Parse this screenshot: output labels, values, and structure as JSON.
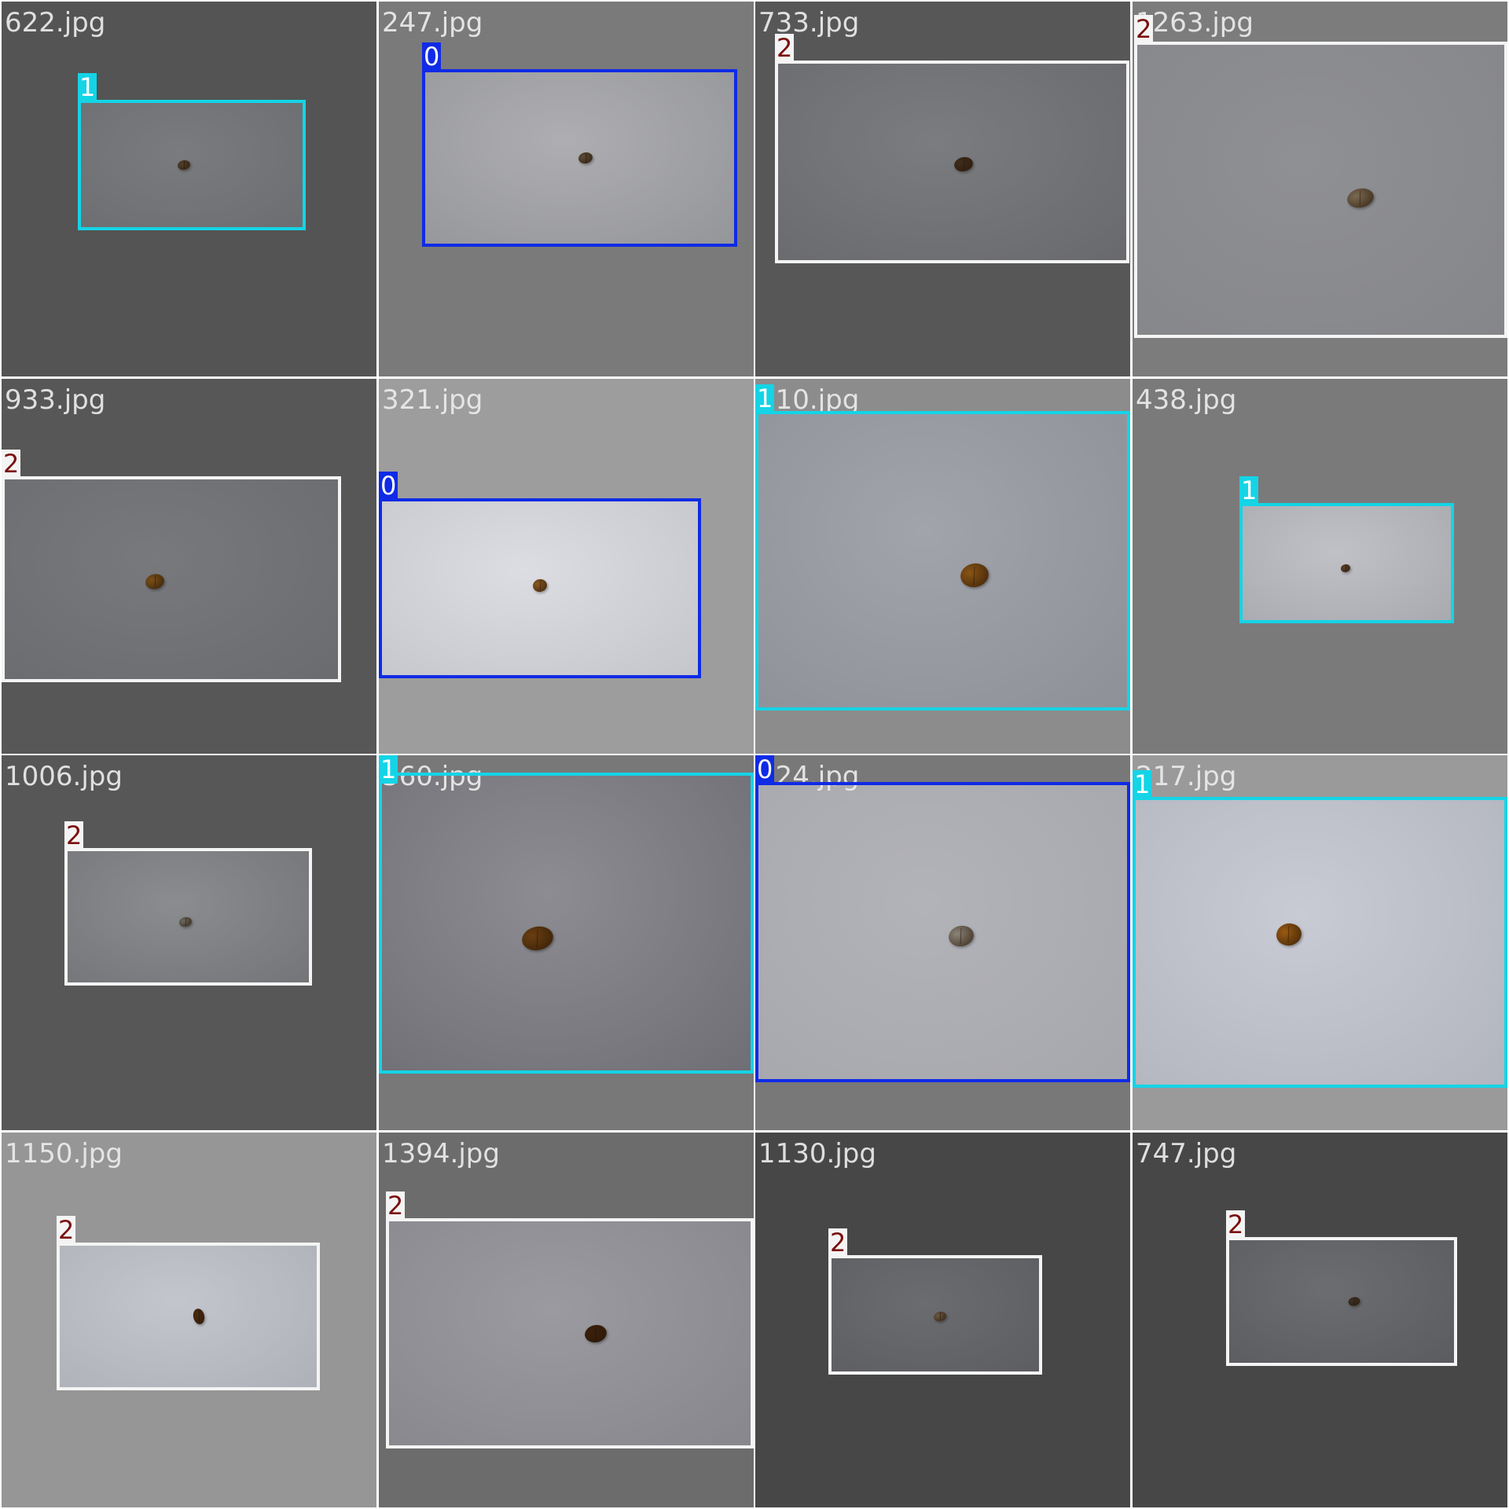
{
  "mosaic": {
    "tiles": [
      {
        "file": "622.jpg",
        "label": "1",
        "bg": "#545454",
        "photo": [
          "#7a7b7e",
          "#6c6d70"
        ],
        "bean": "#4f3f2c"
      },
      {
        "file": "247.jpg",
        "label": "0",
        "bg": "#7a7a7a",
        "photo": [
          "#aeaeb2",
          "#949598"
        ],
        "bean": "#5a4a35"
      },
      {
        "file": "733.jpg",
        "label": "2",
        "bg": "#575757",
        "photo": [
          "#7b7c7f",
          "#68696c"
        ],
        "bean": "#3d2d1c"
      },
      {
        "file": "1263.jpg",
        "label": "2",
        "bg": "#7c7c7c",
        "photo": [
          "#8f9094",
          "#858689"
        ],
        "bean": "#7a6a52"
      },
      {
        "file": "933.jpg",
        "label": "2",
        "bg": "#575757",
        "photo": [
          "#78797d",
          "#6a6b6f"
        ],
        "bean": "#7a4f18"
      },
      {
        "file": "321.jpg",
        "label": "0",
        "bg": "#9d9d9d",
        "photo": [
          "#dcdde2",
          "#c4c5cb"
        ],
        "bean": "#8a5a20"
      },
      {
        "file": "110.jpg",
        "label": "1",
        "bg": "#8c8c8c",
        "photo": [
          "#a2a4ac",
          "#8e9098"
        ],
        "bean": "#8a5414"
      },
      {
        "file": "438.jpg",
        "label": "1",
        "bg": "#7a7a7a",
        "photo": [
          "#c0c1c6",
          "#a8a9ae"
        ],
        "bean": "#5a4028"
      },
      {
        "file": "1006.jpg",
        "label": "2",
        "bg": "#575757",
        "photo": [
          "#8b8c8f",
          "#737477"
        ],
        "bean": "#6a6a60"
      },
      {
        "file": "360.jpg",
        "label": "1",
        "bg": "#787878",
        "photo": [
          "#8c8c92",
          "#6e6e74"
        ],
        "bean": "#6a3e10"
      },
      {
        "file": "224.jpg",
        "label": "0",
        "bg": "#787878",
        "photo": [
          "#b2b3b8",
          "#a6a7ad"
        ],
        "bean": "#8a8478"
      },
      {
        "file": "217.jpg",
        "label": "1",
        "bg": "#9a9a9a",
        "photo": [
          "#c8cad4",
          "#b2b4be"
        ],
        "bean": "#9a5a10"
      },
      {
        "file": "1150.jpg",
        "label": "2",
        "bg": "#969696",
        "photo": [
          "#c4c6cd",
          "#aeb0b8"
        ],
        "bean": "#4a2a0e"
      },
      {
        "file": "1394.jpg",
        "label": "2",
        "bg": "#6c6c6c",
        "photo": [
          "#9a9aa0",
          "#86868c"
        ],
        "bean": "#3a200a"
      },
      {
        "file": "1130.jpg",
        "label": "2",
        "bg": "#474747",
        "photo": [
          "#6b6c6f",
          "#5c5d60"
        ],
        "bean": "#6a5844"
      },
      {
        "file": "747.jpg",
        "label": "2",
        "bg": "#474747",
        "photo": [
          "#6c6d70",
          "#5a5b5e"
        ],
        "bean": "#3a3028"
      }
    ]
  }
}
